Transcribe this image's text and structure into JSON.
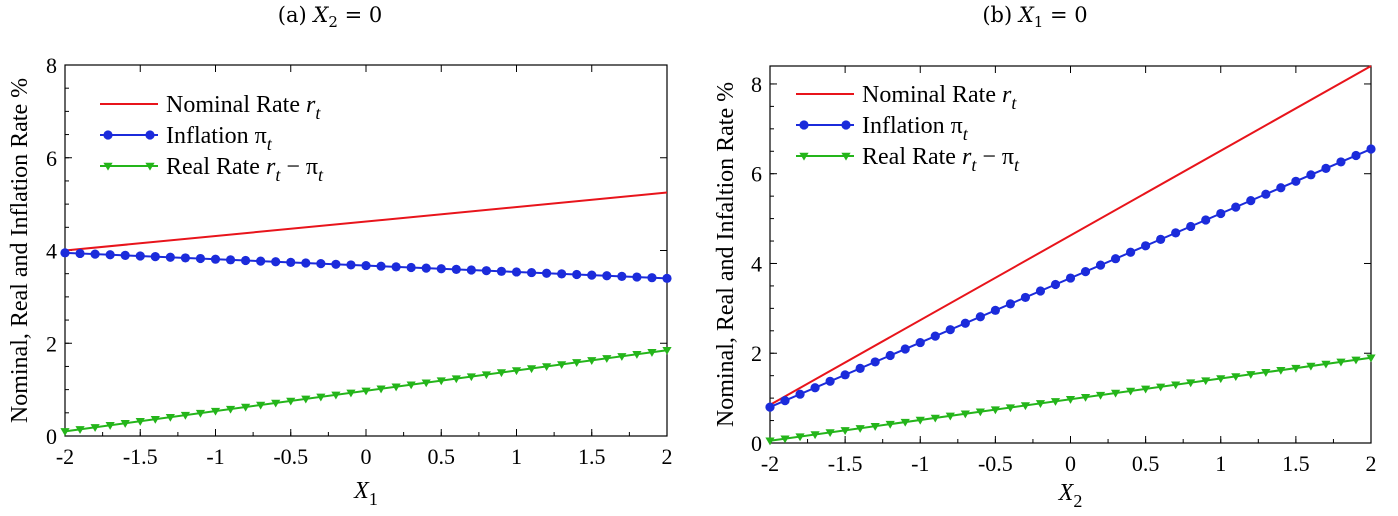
{
  "chart_data": [
    {
      "type": "line",
      "title": {
        "prefix": "(a) ",
        "var": "X",
        "sub": "2",
        "suffix": " = 0"
      },
      "xlabel": {
        "var": "X",
        "sub": "1"
      },
      "ylabel": "Nominal, Real and Inflation Rate %",
      "xlim": [
        -2,
        2
      ],
      "ylim": [
        0,
        8
      ],
      "xticks": [
        "-2",
        "-1.5",
        "-1",
        "-0.5",
        "0",
        "0.5",
        "1",
        "1.5",
        "2"
      ],
      "yticks": [
        "0",
        "2",
        "4",
        "6",
        "8"
      ],
      "legend_position": "top-left",
      "series": [
        {
          "name": {
            "main": "Nominal Rate ",
            "var": "r",
            "sub": "t",
            "tail": ""
          },
          "color": "#e8141b",
          "marker": "none",
          "x": [
            -2,
            2
          ],
          "y": [
            4.0,
            5.25
          ]
        },
        {
          "name": {
            "main": "Inflation ",
            "var": "π",
            "sub": "t",
            "tail": ""
          },
          "color": "#1b2bdb",
          "marker": "circle",
          "x": [
            -2,
            2
          ],
          "y": [
            3.95,
            3.4
          ]
        },
        {
          "name": {
            "main": "Real Rate ",
            "var": "r",
            "sub": "t",
            "tail": " − π",
            "sub2": "t"
          },
          "color": "#24b51a",
          "marker": "triangle-down",
          "x": [
            -2,
            2
          ],
          "y": [
            0.1,
            1.85
          ]
        }
      ]
    },
    {
      "type": "line",
      "title": {
        "prefix": "(b) ",
        "var": "X",
        "sub": "1",
        "suffix": " = 0"
      },
      "xlabel": {
        "var": "X",
        "sub": "2"
      },
      "ylabel": "Nominal, Real and Infaltion Rate %",
      "xlim": [
        -2,
        2
      ],
      "ylim": [
        0,
        8.4
      ],
      "xticks": [
        "-2",
        "-1.5",
        "-1",
        "-0.5",
        "0",
        "0.5",
        "1",
        "1.5",
        "2"
      ],
      "yticks": [
        "0",
        "2",
        "4",
        "6",
        "8"
      ],
      "legend_position": "top-left",
      "series": [
        {
          "name": {
            "main": "Nominal Rate ",
            "var": "r",
            "sub": "t",
            "tail": ""
          },
          "color": "#e8141b",
          "marker": "none",
          "x": [
            -2,
            2
          ],
          "y": [
            0.85,
            8.4
          ]
        },
        {
          "name": {
            "main": "Inflation ",
            "var": "π",
            "sub": "t",
            "tail": ""
          },
          "color": "#1b2bdb",
          "marker": "circle",
          "x": [
            -2,
            2
          ],
          "y": [
            0.8,
            6.55
          ]
        },
        {
          "name": {
            "main": "Real Rate ",
            "var": "r",
            "sub": "t",
            "tail": " − π",
            "sub2": "t"
          },
          "color": "#24b51a",
          "marker": "triangle-down",
          "x": [
            -2,
            2
          ],
          "y": [
            0.05,
            1.9
          ]
        }
      ]
    }
  ]
}
